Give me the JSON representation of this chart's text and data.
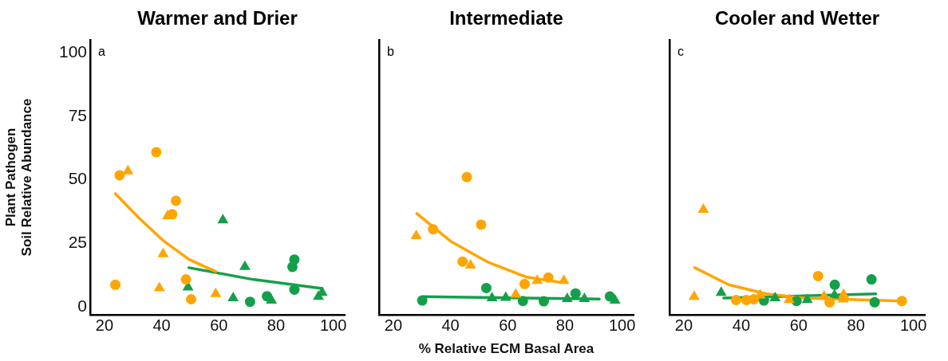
{
  "chart_data": [
    {
      "type": "scatter",
      "title": "Warmer and Drier",
      "ylabel": "Plant Pathogen\nSoil Relative Abundance",
      "annotations": [
        "a"
      ],
      "xlim": [
        15,
        104
      ],
      "xticks": [
        20,
        40,
        60,
        80,
        100
      ],
      "ylim": [
        -3,
        105
      ],
      "yticks": [
        0,
        25,
        50,
        75,
        100
      ],
      "grid": false,
      "legend": false,
      "series": [
        {
          "color": "#ffa500",
          "marker": "circle",
          "x": [
            23.8,
            25.3,
            38.1,
            45.0,
            43.7,
            48.5,
            50.3
          ],
          "values": [
            8.8,
            51.8,
            60.9,
            41.8,
            36.5,
            10.9,
            3.1
          ]
        },
        {
          "color": "#ffa500",
          "marker": "triangle",
          "x": [
            28.2,
            42.1,
            40.5,
            39.2,
            58.9
          ],
          "values": [
            53.4,
            35.8,
            20.9,
            7.5,
            5.2
          ]
        },
        {
          "color": "#14a04a",
          "marker": "circle",
          "x": [
            70.9,
            76.8,
            86.4,
            85.7,
            86.4
          ],
          "values": [
            2.1,
            4.3,
            18.7,
            15.8,
            6.9
          ]
        },
        {
          "color": "#14a04a",
          "marker": "triangle",
          "x": [
            49.2,
            61.4,
            69.1,
            65.0,
            78.4,
            94.8,
            96.1
          ],
          "values": [
            7.8,
            34.2,
            15.9,
            3.6,
            2.6,
            4.1,
            5.7
          ]
        },
        {
          "type": "line",
          "color": "#ffa500",
          "marker": "none",
          "x": [
            23.8,
            31.9,
            40.8,
            49.6,
            58.9
          ],
          "values": [
            44.6,
            35.2,
            25.9,
            18.7,
            14.0
          ]
        },
        {
          "type": "line",
          "color": "#14a04a",
          "marker": "none",
          "x": [
            49.5,
            71.8,
            96.1
          ],
          "values": [
            15.5,
            10.9,
            7.3
          ]
        }
      ]
    },
    {
      "type": "scatter",
      "title": "Intermediate",
      "xlabel": "% Relative ECM Basal Area",
      "annotations": [
        "b"
      ],
      "xlim": [
        15,
        104
      ],
      "xticks": [
        20,
        40,
        60,
        80,
        100
      ],
      "ylim": [
        -3,
        105
      ],
      "yticks": [
        0,
        25,
        50,
        75,
        100
      ],
      "tick_labels": "x",
      "grid": false,
      "legend": false,
      "series": [
        {
          "color": "#ffa500",
          "marker": "circle",
          "x": [
            33.9,
            45.7,
            50.7,
            44.2,
            65.9,
            74.2
          ],
          "values": [
            30.6,
            51.1,
            32.4,
            17.9,
            9.1,
            11.6
          ]
        },
        {
          "color": "#ffa500",
          "marker": "triangle",
          "x": [
            28.0,
            47.0,
            62.8,
            70.3,
            79.6
          ],
          "values": [
            28.0,
            16.4,
            5.0,
            10.4,
            10.4
          ]
        },
        {
          "color": "#14a04a",
          "marker": "circle",
          "x": [
            30.1,
            52.5,
            65.3,
            72.6,
            83.7,
            95.7
          ],
          "values": [
            2.6,
            7.5,
            2.4,
            2.3,
            5.4,
            4.2
          ]
        },
        {
          "color": "#14a04a",
          "marker": "triangle",
          "x": [
            54.5,
            59.3,
            80.8,
            86.8,
            97.5
          ],
          "values": [
            3.6,
            3.7,
            3.3,
            3.3,
            2.6
          ]
        },
        {
          "type": "line",
          "color": "#ffa500",
          "marker": "none",
          "x": [
            28.2,
            40.0,
            53.2,
            66.3,
            78.2
          ],
          "values": [
            36.8,
            25.9,
            17.6,
            11.9,
            9.8
          ]
        },
        {
          "type": "line",
          "color": "#14a04a",
          "marker": "none",
          "x": [
            30.4,
            92.0
          ],
          "values": [
            4.1,
            3.2
          ]
        }
      ]
    },
    {
      "type": "scatter",
      "title": "Cooler and Wetter",
      "annotations": [
        "c"
      ],
      "xlim": [
        15,
        104
      ],
      "xticks": [
        20,
        40,
        60,
        80,
        100
      ],
      "ylim": [
        -3,
        105
      ],
      "yticks": [
        0,
        25,
        50,
        75,
        100
      ],
      "tick_labels": "x",
      "grid": false,
      "legend": false,
      "series": [
        {
          "color": "#ffa500",
          "marker": "circle",
          "x": [
            38.2,
            41.8,
            44.4,
            66.8,
            70.8,
            96.0
          ],
          "values": [
            2.8,
            2.8,
            3.1,
            12.2,
            1.9,
            2.4
          ]
        },
        {
          "color": "#ffa500",
          "marker": "triangle",
          "x": [
            26.8,
            23.6,
            46.6,
            56.7,
            68.9,
            75.7,
            75.5
          ],
          "values": [
            38.3,
            4.1,
            4.7,
            2.9,
            4.2,
            4.9,
            3.1
          ]
        },
        {
          "color": "#14a04a",
          "marker": "circle",
          "x": [
            47.9,
            59.3,
            72.6,
            85.4,
            86.5
          ],
          "values": [
            2.6,
            2.4,
            8.8,
            10.9,
            1.9
          ]
        },
        {
          "color": "#14a04a",
          "marker": "triangle",
          "x": [
            33.0,
            51.8,
            63.0,
            72.5
          ],
          "values": [
            5.7,
            3.6,
            2.9,
            4.7
          ]
        },
        {
          "type": "line",
          "color": "#ffa500",
          "marker": "none",
          "x": [
            23.8,
            35.6,
            48.8,
            61.9,
            96.0
          ],
          "values": [
            15.5,
            8.8,
            5.2,
            3.6,
            2.4
          ]
        },
        {
          "type": "line",
          "color": "#14a04a",
          "marker": "none",
          "x": [
            33.9,
            86.9
          ],
          "values": [
            3.6,
            5.2
          ]
        }
      ]
    }
  ]
}
